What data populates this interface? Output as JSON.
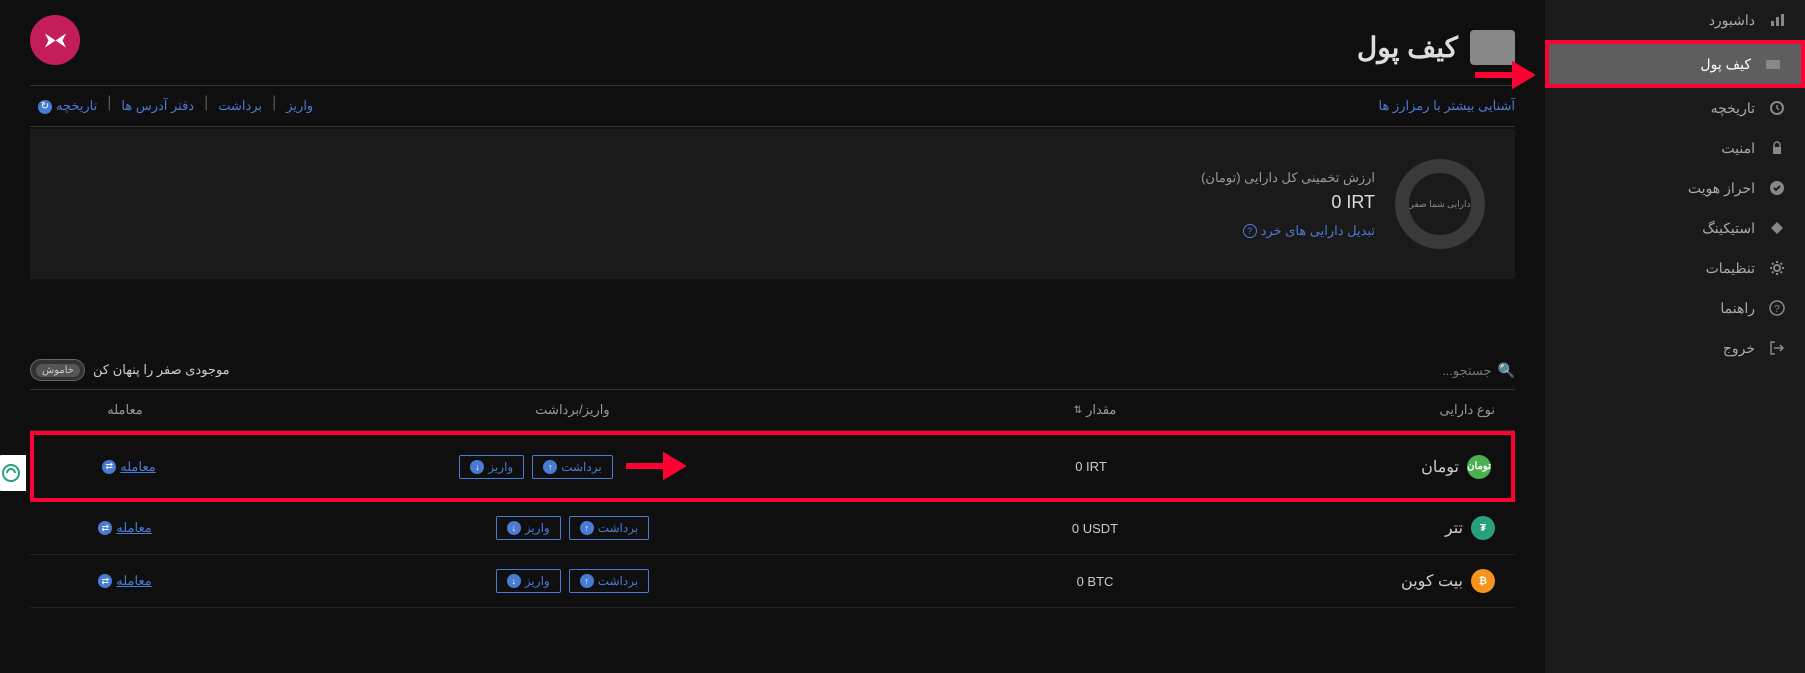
{
  "sidebar": {
    "items": [
      {
        "label": "داشبورد",
        "icon": "bar-chart"
      },
      {
        "label": "کیف پول",
        "icon": "wallet",
        "active": true
      },
      {
        "label": "تاریخچه",
        "icon": "clock"
      },
      {
        "label": "امنیت",
        "icon": "lock"
      },
      {
        "label": "احراز هویت",
        "icon": "check"
      },
      {
        "label": "استیکینگ",
        "icon": "diamond"
      },
      {
        "label": "تنظیمات",
        "icon": "gear"
      },
      {
        "label": "راهنما",
        "icon": "help"
      },
      {
        "label": "خروج",
        "icon": "exit"
      }
    ]
  },
  "page": {
    "title": "کیف پول",
    "crypto_link": "آشنایی بیشتر با رمزارز ها",
    "tabs": {
      "deposit": "واریز",
      "withdraw": "برداشت",
      "addresses": "دفتر آدرس ها",
      "history": "تاریخچه"
    }
  },
  "balance": {
    "label": "ارزش تخمینی کل دارایی (تومان)",
    "value": "0 IRT",
    "donut_text": "دارایی شما صفر",
    "convert_link": "تبدیل دارایی های خرد"
  },
  "controls": {
    "search_placeholder": "جستجو...",
    "toggle_label": "موجودی صفر را پنهان کن",
    "toggle_state": "خاموش"
  },
  "table": {
    "headers": {
      "type": "نوع دارایی",
      "amount": "مقدار",
      "actions": "واریز/برداشت",
      "trade": "معامله"
    },
    "btn_deposit": "واریز",
    "btn_withdraw": "برداشت",
    "btn_trade": "معامله",
    "rows": [
      {
        "name": "تومان",
        "amount": "0 IRT",
        "color": "#4caf50",
        "symbol": "تومان",
        "highlighted": true
      },
      {
        "name": "تتر",
        "amount": "0 USDT",
        "color": "#26a17b",
        "symbol": "₮"
      },
      {
        "name": "بیت کوین",
        "amount": "0 BTC",
        "color": "#f7931a",
        "symbol": "₿"
      }
    ]
  },
  "colors": {
    "accent": "#4a7bd4",
    "highlight": "#ff0033",
    "logo_bg": "#c41e5a"
  }
}
